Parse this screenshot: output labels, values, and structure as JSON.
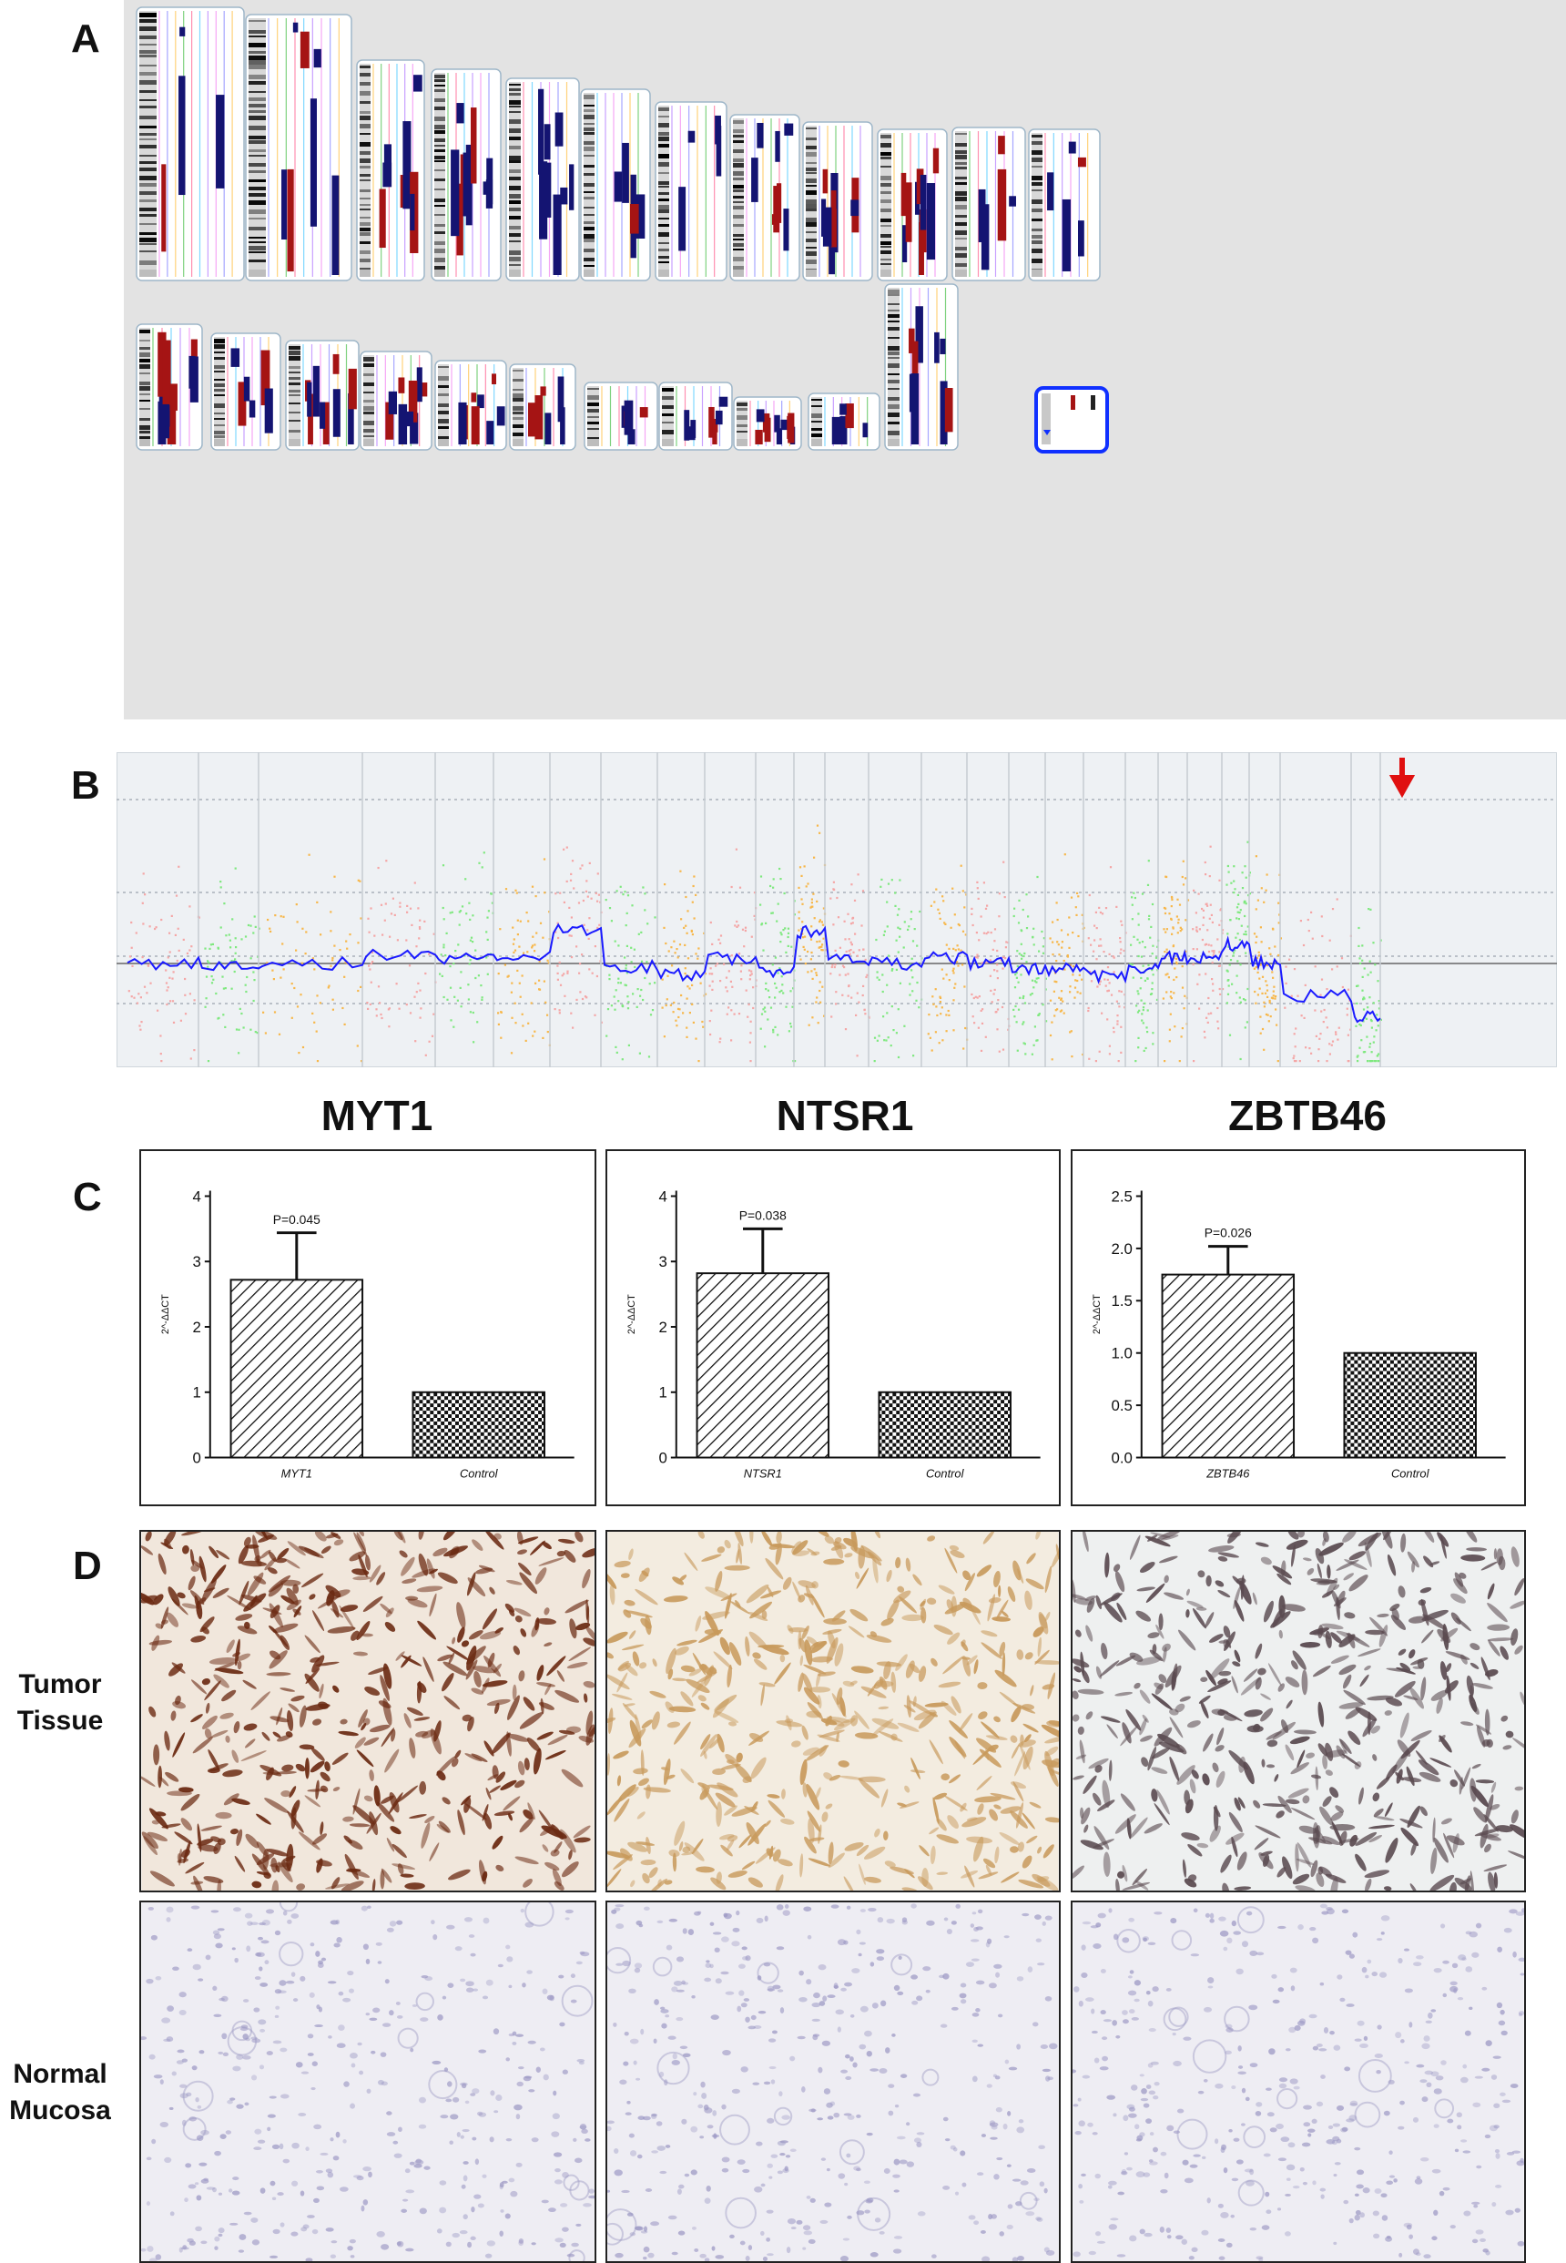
{
  "panels": {
    "a": "A",
    "b": "B",
    "c": "C",
    "d": "D"
  },
  "colors": {
    "dark_blue": "#141472",
    "dark_red": "#a51414",
    "cnv_pink": "#f4a6a6",
    "cnv_green": "#7fe87f",
    "cnv_orange": "#f7b74a",
    "trace_blue": "#1a1aff",
    "arrow_red": "#e01010",
    "highlight_blue": "#1030ff"
  },
  "genes": [
    "MYT1",
    "NTSR1",
    "ZBTB46"
  ],
  "chart_data": [
    {
      "type": "bar",
      "title": "MYT1",
      "categories": [
        "MYT1",
        "Control"
      ],
      "values": [
        2.72,
        1.0
      ],
      "errors": [
        0.72,
        0
      ],
      "ylim": [
        0,
        4
      ],
      "yticks": [
        "0",
        "1",
        "2",
        "3",
        "4"
      ],
      "ytick_values": [
        0,
        1,
        2,
        3,
        4
      ],
      "ylabel": "2^-ΔΔCT",
      "annotation": "P=0.045"
    },
    {
      "type": "bar",
      "title": "NTSR1",
      "categories": [
        "NTSR1",
        "Control"
      ],
      "values": [
        2.82,
        1.0
      ],
      "errors": [
        0.68,
        0
      ],
      "ylim": [
        0,
        4
      ],
      "yticks": [
        "0",
        "1",
        "2",
        "3",
        "4"
      ],
      "ytick_values": [
        0,
        1,
        2,
        3,
        4
      ],
      "ylabel": "2^-ΔΔCT",
      "annotation": "P=0.038"
    },
    {
      "type": "bar",
      "title": "ZBTB46",
      "categories": [
        "ZBTB46",
        "Control"
      ],
      "values": [
        1.75,
        1.0
      ],
      "errors": [
        0.27,
        0
      ],
      "ylim": [
        0,
        2.5
      ],
      "yticks": [
        "0.0",
        "0.5",
        "1.0",
        "1.5",
        "2.0",
        "2.5"
      ],
      "ytick_values": [
        0,
        0.5,
        1.0,
        1.5,
        2.0,
        2.5
      ],
      "ylabel": "2^-ΔΔCT",
      "annotation": "P=0.026"
    }
  ],
  "panel_d": {
    "row_tumor": [
      "Tumor",
      "Tissue"
    ],
    "row_normal": [
      "Normal",
      "Mucosa"
    ],
    "stain_colors": {
      "myt1_tumor": "#6b2a12",
      "ntsr1_tumor": "#c89a5c",
      "zbtb46_tumor": "#5a4a50",
      "normal": "#9c98c4"
    }
  }
}
